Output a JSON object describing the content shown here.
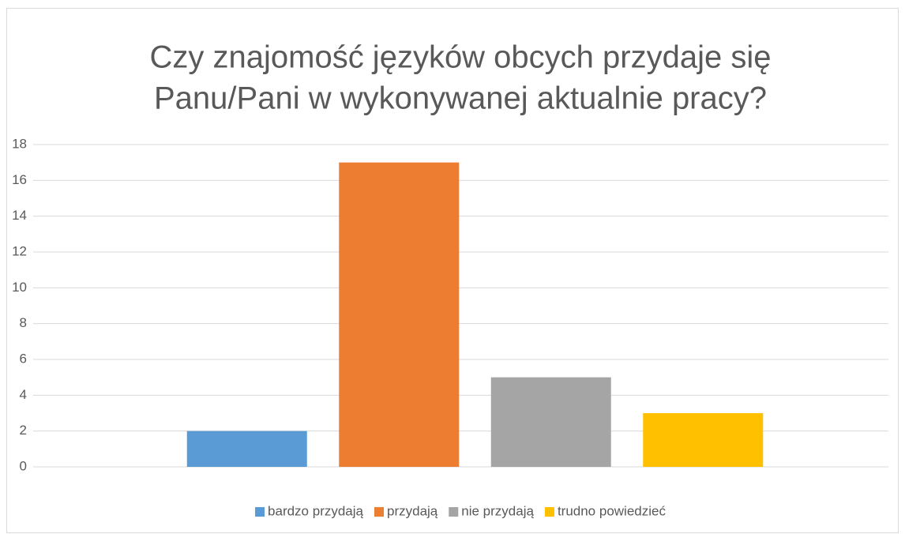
{
  "chart_data": {
    "type": "bar",
    "title": [
      "Czy znajomość języków obcych przydaje się",
      "Panu/Pani w wykonywanej aktualnie pracy?"
    ],
    "categories": [
      null
    ],
    "series": [
      {
        "name": "bardzo przydają",
        "color": "#5b9bd5",
        "values": [
          2
        ]
      },
      {
        "name": "przydają",
        "color": "#ed7d31",
        "values": [
          17
        ]
      },
      {
        "name": "nie przydają",
        "color": "#a5a5a5",
        "values": [
          5
        ]
      },
      {
        "name": "trudno powiedzieć",
        "color": "#ffc000",
        "values": [
          3
        ]
      }
    ],
    "ylim": [
      0,
      18
    ],
    "yticks": [
      0,
      2,
      4,
      6,
      8,
      10,
      12,
      14,
      16,
      18
    ],
    "grid": true,
    "legend": "bottom"
  }
}
